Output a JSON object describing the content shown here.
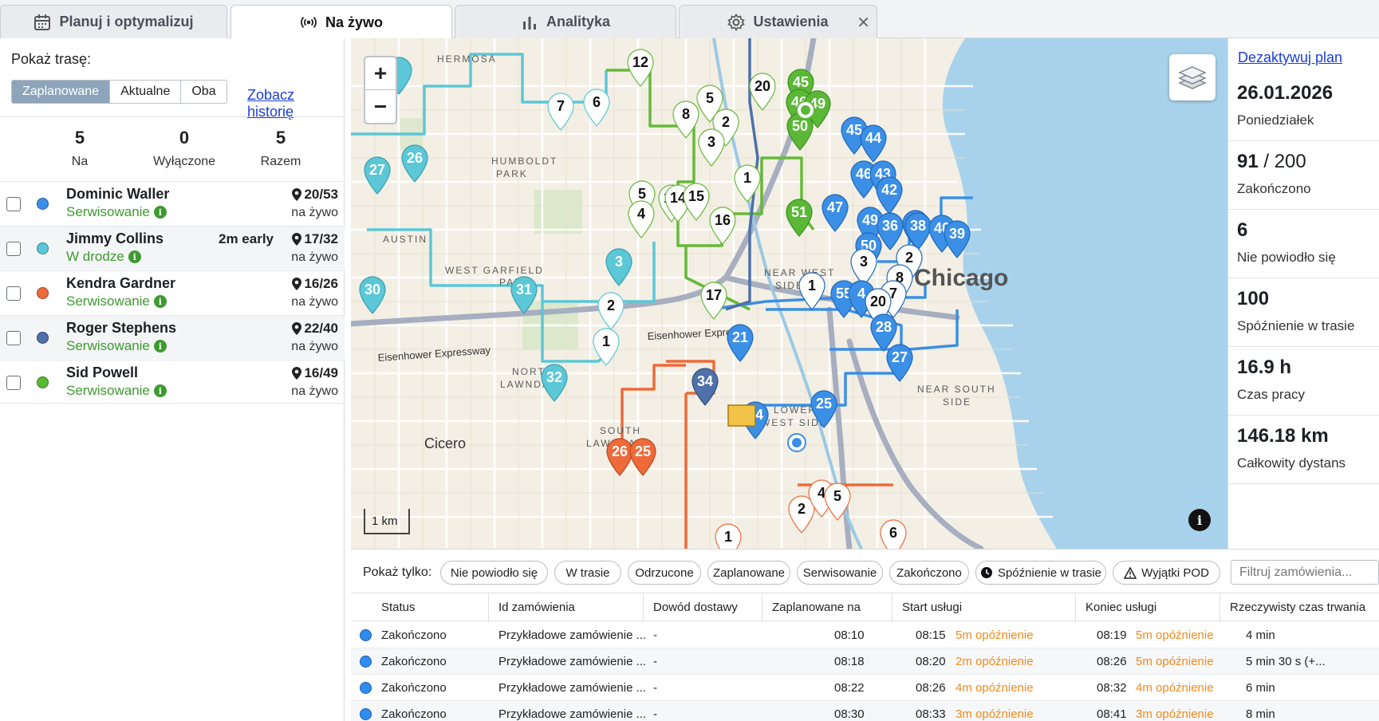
{
  "tabs": [
    {
      "label": "Planuj i optymalizuj",
      "icon": "calendar-icon"
    },
    {
      "label": "Na żywo",
      "icon": "live-signal-icon"
    },
    {
      "label": "Analityka",
      "icon": "bar-chart-icon"
    },
    {
      "label": "Ustawienia",
      "icon": "gear-icon"
    }
  ],
  "left": {
    "show_route": "Pokaż trasę:",
    "segments": [
      "Zaplanowane",
      "Aktualne",
      "Oba"
    ],
    "history_link": "Zobacz historię",
    "stats": [
      {
        "value": "5",
        "label": "Na"
      },
      {
        "value": "0",
        "label": "Wyłączone"
      },
      {
        "value": "5",
        "label": "Razem"
      }
    ],
    "drivers": [
      {
        "name": "Dominic Waller",
        "status": "Serwisowanie",
        "count": "20/53",
        "live": "na żywo",
        "early": "",
        "color": "#3b8fe6"
      },
      {
        "name": "Jimmy Collins",
        "status": "W drodze",
        "count": "17/32",
        "live": "na żywo",
        "early": "2m early",
        "color": "#5cc7d6"
      },
      {
        "name": "Kendra Gardner",
        "status": "Serwisowanie",
        "count": "16/26",
        "live": "na żywo",
        "early": "",
        "color": "#ee6a3a"
      },
      {
        "name": "Roger Stephens",
        "status": "Serwisowanie",
        "count": "22/40",
        "live": "na żywo",
        "early": "",
        "color": "#4f70a8"
      },
      {
        "name": "Sid Powell",
        "status": "Serwisowanie",
        "count": "16/49",
        "live": "na żywo",
        "early": "",
        "color": "#5ab836"
      }
    ]
  },
  "map": {
    "zoom_in": "+",
    "zoom_out": "−",
    "scale": "1 km",
    "labels": [
      "HERMOSA",
      "HUMBOLDT",
      "PARK",
      "WEST GARFIELD",
      "PARK",
      "AUSTIN",
      "NORTH",
      "LAWNDALE",
      "SOUTH",
      "LAWNDALE",
      "Cicero",
      "Chicago",
      "NEAR WEST",
      "SIDE",
      "LOWER",
      "WEST SIDE",
      "NEAR SOUTH",
      "SIDE",
      "Eisenhower Expressway",
      "Eisenhower Express"
    ]
  },
  "right": {
    "deactivate": "Dezaktywuj plan",
    "date": "26.01.2026",
    "weekday": "Poniedziałek",
    "completed_value": "91",
    "completed_total": " / 200",
    "completed_label": "Zakończono",
    "failed_value": "6",
    "failed_label": "Nie powiodło się",
    "late_value": "100",
    "late_label": "Spóźnienie w trasie",
    "work_value": "16.9 h",
    "work_label": "Czas pracy",
    "dist_value": "146.18 km",
    "dist_label": "Całkowity dystans"
  },
  "filters": {
    "label": "Pokaż tylko:",
    "chips": [
      "Nie powiodło się",
      "W trasie",
      "Odrzucone",
      "Zaplanowane",
      "Serwisowanie",
      "Zakończono",
      "Spóźnienie w trasie",
      "Wyjątki POD"
    ],
    "placeholder": "Filtruj zamówienia..."
  },
  "table": {
    "headers": [
      "Status",
      "Id zamówienia",
      "Dowód dostawy",
      "Zaplanowane na",
      "Start usługi",
      "Koniec usługi",
      "Rzeczywisty czas trwania"
    ],
    "rows": [
      {
        "status": "Zakończono",
        "order": "Przykładowe zamówienie ...",
        "pod": "-",
        "planned": "08:10",
        "start": "08:15",
        "start_late": "5m opóźnienie",
        "end": "08:19",
        "end_late": "5m opóźnienie",
        "duration": "4 min"
      },
      {
        "status": "Zakończono",
        "order": "Przykładowe zamówienie ...",
        "pod": "-",
        "planned": "08:18",
        "start": "08:20",
        "start_late": "2m opóźnienie",
        "end": "08:26",
        "end_late": "5m opóźnienie",
        "duration": "5 min 30 s (+..."
      },
      {
        "status": "Zakończono",
        "order": "Przykładowe zamówienie ...",
        "pod": "-",
        "planned": "08:22",
        "start": "08:26",
        "start_late": "4m opóźnienie",
        "end": "08:32",
        "end_late": "4m opóźnienie",
        "duration": "6 min"
      },
      {
        "status": "Zakończono",
        "order": "Przykładowe zamówienie ...",
        "pod": "-",
        "planned": "08:30",
        "start": "08:33",
        "start_late": "3m opóźnienie",
        "end": "08:41",
        "end_late": "3m opóźnienie",
        "duration": "8 min"
      }
    ]
  }
}
